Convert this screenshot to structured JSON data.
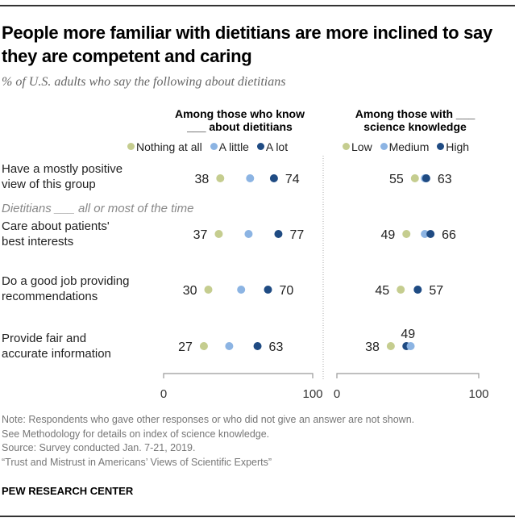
{
  "header": {
    "title": "People more familiar with dietitians are more inclined to say they are competent and caring",
    "subtitle": "% of U.S. adults who say the following about dietitians"
  },
  "rows": [
    {
      "label_line1": "Have a mostly positive",
      "label_line2": "view of this group"
    },
    {
      "label_line1": "Care about patients'",
      "label_line2": "best interests"
    },
    {
      "label_line1": "Do a good job providing",
      "label_line2": "recommendations"
    },
    {
      "label_line1": "Provide fair and",
      "label_line2": "accurate information"
    }
  ],
  "section_label": "Dietitians ___ all or most of the time",
  "colors": {
    "low": "#c5cd8f",
    "medium": "#8cb4e3",
    "high": "#1f4b83",
    "axis": "#999999",
    "divider": "#aaaaaa"
  },
  "chart_data": [
    {
      "type": "scatter",
      "title": "Among those who know ___ about dietitians",
      "title_line1": "Among those who know",
      "title_line2": "___ about dietitians",
      "legend": [
        "Nothing at all",
        "A little",
        "A lot"
      ],
      "categories": [
        "Have a mostly positive view of this group",
        "Care about patients' best interests",
        "Do a good job providing recommendations",
        "Provide fair and accurate information"
      ],
      "series": [
        {
          "name": "Nothing at all",
          "values": [
            38,
            37,
            30,
            27
          ],
          "labeled": true
        },
        {
          "name": "A little",
          "values": [
            58,
            57,
            52,
            44
          ],
          "labeled": false
        },
        {
          "name": "A lot",
          "values": [
            74,
            77,
            70,
            63
          ],
          "labeled": true
        }
      ],
      "xlim": [
        0,
        100
      ],
      "tick_labels": [
        "0",
        "100"
      ],
      "grid": false
    },
    {
      "type": "scatter",
      "title": "Among those with ___ science knowledge",
      "title_line1": "Among those with ___",
      "title_line2": "science knowledge",
      "legend": [
        "Low",
        "Medium",
        "High"
      ],
      "categories": [
        "Have a mostly positive view of this group",
        "Care about patients' best interests",
        "Do a good job providing recommendations",
        "Provide fair and accurate information"
      ],
      "series": [
        {
          "name": "Low",
          "values": [
            55,
            49,
            45,
            38
          ],
          "labeled": true
        },
        {
          "name": "Medium",
          "values": [
            62,
            62,
            57,
            52
          ],
          "labeled": false
        },
        {
          "name": "High",
          "values": [
            63,
            66,
            57,
            49
          ],
          "labeled": true
        }
      ],
      "xlim": [
        0,
        100
      ],
      "tick_labels": [
        "0",
        "100"
      ],
      "grid": false
    }
  ],
  "footer": {
    "note1": "Note: Respondents who gave other responses or who did not give an answer are not shown.",
    "note2": "See Methodology for details on index of science knowledge.",
    "source": "Source: Survey conducted Jan. 7-21, 2019.",
    "report": "“Trust and Mistrust in Americans’ Views of Scientific Experts”",
    "brand": "PEW RESEARCH CENTER"
  }
}
